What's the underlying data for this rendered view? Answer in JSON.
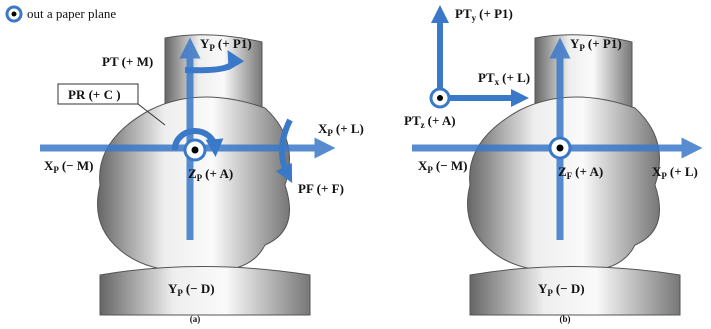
{
  "legend": {
    "label": "out a paper plane"
  },
  "panels": [
    {
      "caption": "(a)",
      "labels": [
        {
          "main": "Y",
          "sub": "P",
          "rest": "(+ P1)"
        },
        {
          "main": "PT (+ M)"
        },
        {
          "main": "PR (+ C )"
        },
        {
          "main": "X",
          "sub": "P",
          "rest": "(+ L)"
        },
        {
          "main": "X",
          "sub": "P",
          "rest": "(− M)"
        },
        {
          "main": "Z",
          "sub": "P",
          "rest": "(+ A)"
        },
        {
          "main": "PF (+ F)"
        },
        {
          "main": "Y",
          "sub": "P",
          "rest": "(− D)"
        }
      ]
    },
    {
      "caption": "(b)",
      "labels": [
        {
          "main": "PT",
          "sub": "y",
          "rest": "(+ P1)"
        },
        {
          "main": "Y",
          "sub": "P",
          "rest": "(+ P1)"
        },
        {
          "main": "PT",
          "sub": "x",
          "rest": "(+ L)"
        },
        {
          "main": "PT",
          "sub": "z",
          "rest": "(+ A)"
        },
        {
          "main": "X",
          "sub": "P",
          "rest": "(− M)"
        },
        {
          "main": "Z",
          "sub": "F",
          "rest": "(+ A)"
        },
        {
          "main": "X",
          "sub": "P",
          "rest": "(+ L)"
        },
        {
          "main": "Y",
          "sub": "P",
          "rest": "(− D)"
        }
      ]
    }
  ]
}
